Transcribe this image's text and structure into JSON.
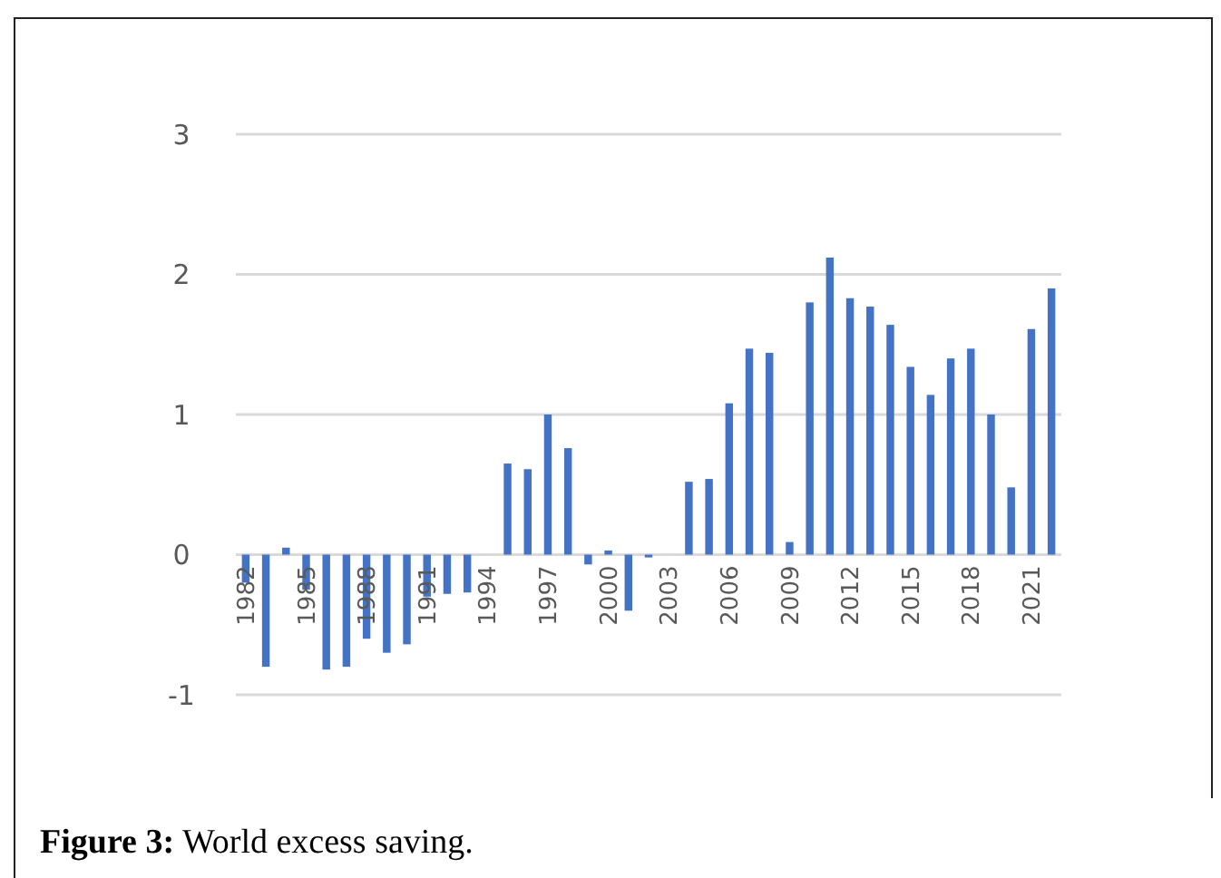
{
  "chart_data": {
    "type": "bar",
    "categories": [
      "1982",
      null,
      null,
      "1985",
      null,
      null,
      "1988",
      null,
      null,
      "1991",
      null,
      null,
      "1994",
      null,
      null,
      "1997",
      null,
      null,
      "2000",
      null,
      null,
      "2003",
      null,
      null,
      "2006",
      null,
      null,
      "2009",
      null,
      null,
      "2012",
      null,
      null,
      "2015",
      null,
      null,
      "2018",
      null,
      null,
      "2021",
      null
    ],
    "values": [
      -0.2,
      -0.8,
      0.05,
      -0.25,
      -0.82,
      -0.8,
      -0.6,
      -0.7,
      -0.64,
      -0.3,
      -0.28,
      -0.27,
      0,
      0.65,
      0.61,
      1.0,
      0.76,
      -0.07,
      0.03,
      -0.4,
      -0.02,
      0,
      0.52,
      0.54,
      1.08,
      1.47,
      1.44,
      0.09,
      1.8,
      2.12,
      1.83,
      1.77,
      1.64,
      1.34,
      1.14,
      1.4,
      1.47,
      1.0,
      0.48,
      1.61,
      1.9
    ],
    "color": "#4472c4",
    "ylim": [
      -1,
      3
    ],
    "yticks": [
      -1,
      0,
      1,
      2,
      3
    ],
    "grid": "y",
    "annotations": [
      "Figure 3: World excess saving."
    ]
  }
}
